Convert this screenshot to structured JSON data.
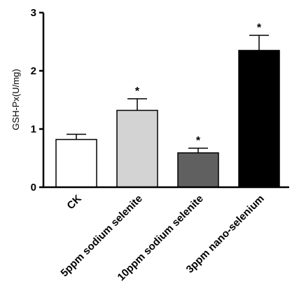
{
  "chart_data": {
    "type": "bar",
    "title": "",
    "xlabel": "",
    "ylabel": "GSH-Px(U/mg)",
    "ylim": [
      0,
      3
    ],
    "yticks": [
      0,
      1,
      2,
      3
    ],
    "grid": false,
    "categories": [
      "CK",
      "5ppm sodium selenite",
      "10ppm sodium selenite",
      "3ppm nano-selenium"
    ],
    "values": [
      0.82,
      1.32,
      0.59,
      2.35
    ],
    "errors": [
      0.09,
      0.2,
      0.08,
      0.26
    ],
    "significance": [
      "",
      "*",
      "*",
      "*"
    ],
    "bar_colors": [
      "#ffffff",
      "#d3d3d3",
      "#606060",
      "#000000"
    ]
  }
}
